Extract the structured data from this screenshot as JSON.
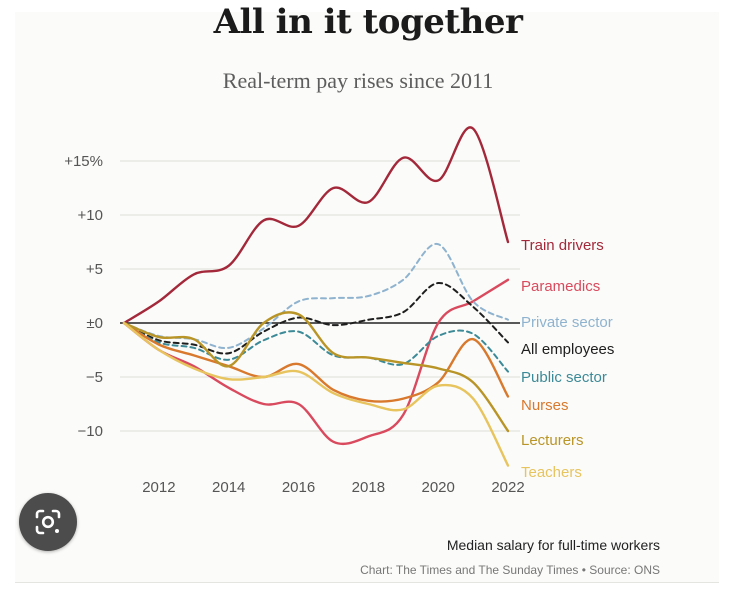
{
  "chart_data": {
    "type": "line",
    "title": "All in it together",
    "subtitle": "Real-term pay rises since 2011",
    "xlabel": "",
    "ylabel": "",
    "xlim": [
      2011,
      2022
    ],
    "ylim": [
      -14,
      18
    ],
    "x_ticks": [
      2012,
      2014,
      2016,
      2018,
      2020,
      2022
    ],
    "y_ticks": [
      {
        "value": 15,
        "label": "+15%"
      },
      {
        "value": 10,
        "label": "+10"
      },
      {
        "value": 5,
        "label": "+5"
      },
      {
        "value": 0,
        "label": "±0"
      },
      {
        "value": -5,
        "label": "−5"
      },
      {
        "value": -10,
        "label": "−10"
      }
    ],
    "series": [
      {
        "name": "Train drivers",
        "color": "#a3283a",
        "dashed": false,
        "x": [
          2011,
          2012,
          2013,
          2014,
          2015,
          2016,
          2017,
          2018,
          2019,
          2020,
          2021,
          2022
        ],
        "values": [
          0,
          2,
          4.5,
          5.3,
          9.5,
          9,
          12.5,
          11.2,
          15.3,
          13.2,
          18,
          7.5
        ]
      },
      {
        "name": "Paramedics",
        "color": "#d94a5e",
        "dashed": false,
        "x": [
          2011,
          2012,
          2013,
          2014,
          2015,
          2016,
          2017,
          2018,
          2019,
          2020,
          2021,
          2022
        ],
        "values": [
          0,
          -2.5,
          -4,
          -6,
          -7.5,
          -7.5,
          -11,
          -10.5,
          -8.5,
          0,
          2,
          4
        ]
      },
      {
        "name": "Private sector",
        "color": "#8fb3cf",
        "dashed": true,
        "x": [
          2011,
          2012,
          2013,
          2014,
          2015,
          2016,
          2017,
          2018,
          2019,
          2020,
          2021,
          2022
        ],
        "values": [
          0,
          -1.2,
          -1.5,
          -2.3,
          -0.5,
          2,
          2.3,
          2.5,
          4,
          7.3,
          2,
          0.3
        ]
      },
      {
        "name": "All employees",
        "color": "#1e1e1e",
        "dashed": true,
        "x": [
          2011,
          2012,
          2013,
          2014,
          2015,
          2016,
          2017,
          2018,
          2019,
          2020,
          2021,
          2022
        ],
        "values": [
          0,
          -1.6,
          -2,
          -2.8,
          -0.8,
          0.5,
          -0.2,
          0.3,
          1,
          3.7,
          1.5,
          -1.8
        ]
      },
      {
        "name": "Public sector",
        "color": "#3c8a97",
        "dashed": true,
        "x": [
          2011,
          2012,
          2013,
          2014,
          2015,
          2016,
          2017,
          2018,
          2019,
          2020,
          2021,
          2022
        ],
        "values": [
          0,
          -1.8,
          -2.3,
          -3.4,
          -1.6,
          -0.8,
          -3,
          -3.2,
          -3.8,
          -1.2,
          -1,
          -4.5
        ]
      },
      {
        "name": "Nurses",
        "color": "#d8792d",
        "dashed": false,
        "x": [
          2011,
          2012,
          2013,
          2014,
          2015,
          2016,
          2017,
          2018,
          2019,
          2020,
          2021,
          2022
        ],
        "values": [
          0,
          -2,
          -3,
          -4,
          -5,
          -3.8,
          -6.2,
          -7.2,
          -7,
          -5.5,
          -1.5,
          -6.8
        ]
      },
      {
        "name": "Lecturers",
        "color": "#b99528",
        "dashed": false,
        "x": [
          2011,
          2012,
          2013,
          2014,
          2015,
          2016,
          2017,
          2018,
          2019,
          2020,
          2021,
          2022
        ],
        "values": [
          0,
          -1.3,
          -1.5,
          -4,
          0,
          0.8,
          -2.8,
          -3.2,
          -3.7,
          -4.2,
          -5.5,
          -10
        ]
      },
      {
        "name": "Teachers",
        "color": "#e7c45e",
        "dashed": false,
        "x": [
          2011,
          2012,
          2013,
          2014,
          2015,
          2016,
          2017,
          2018,
          2019,
          2020,
          2021,
          2022
        ],
        "values": [
          0,
          -2.5,
          -4.2,
          -5.2,
          -5,
          -4.5,
          -6.5,
          -7.5,
          -8,
          -5.8,
          -7,
          -13.2
        ]
      }
    ]
  },
  "footer": {
    "note": "Median salary for full-time workers",
    "source": "Chart: The Times and The Sunday Times • Source: ONS"
  },
  "overlay": {
    "icon": "google-lens-icon"
  }
}
